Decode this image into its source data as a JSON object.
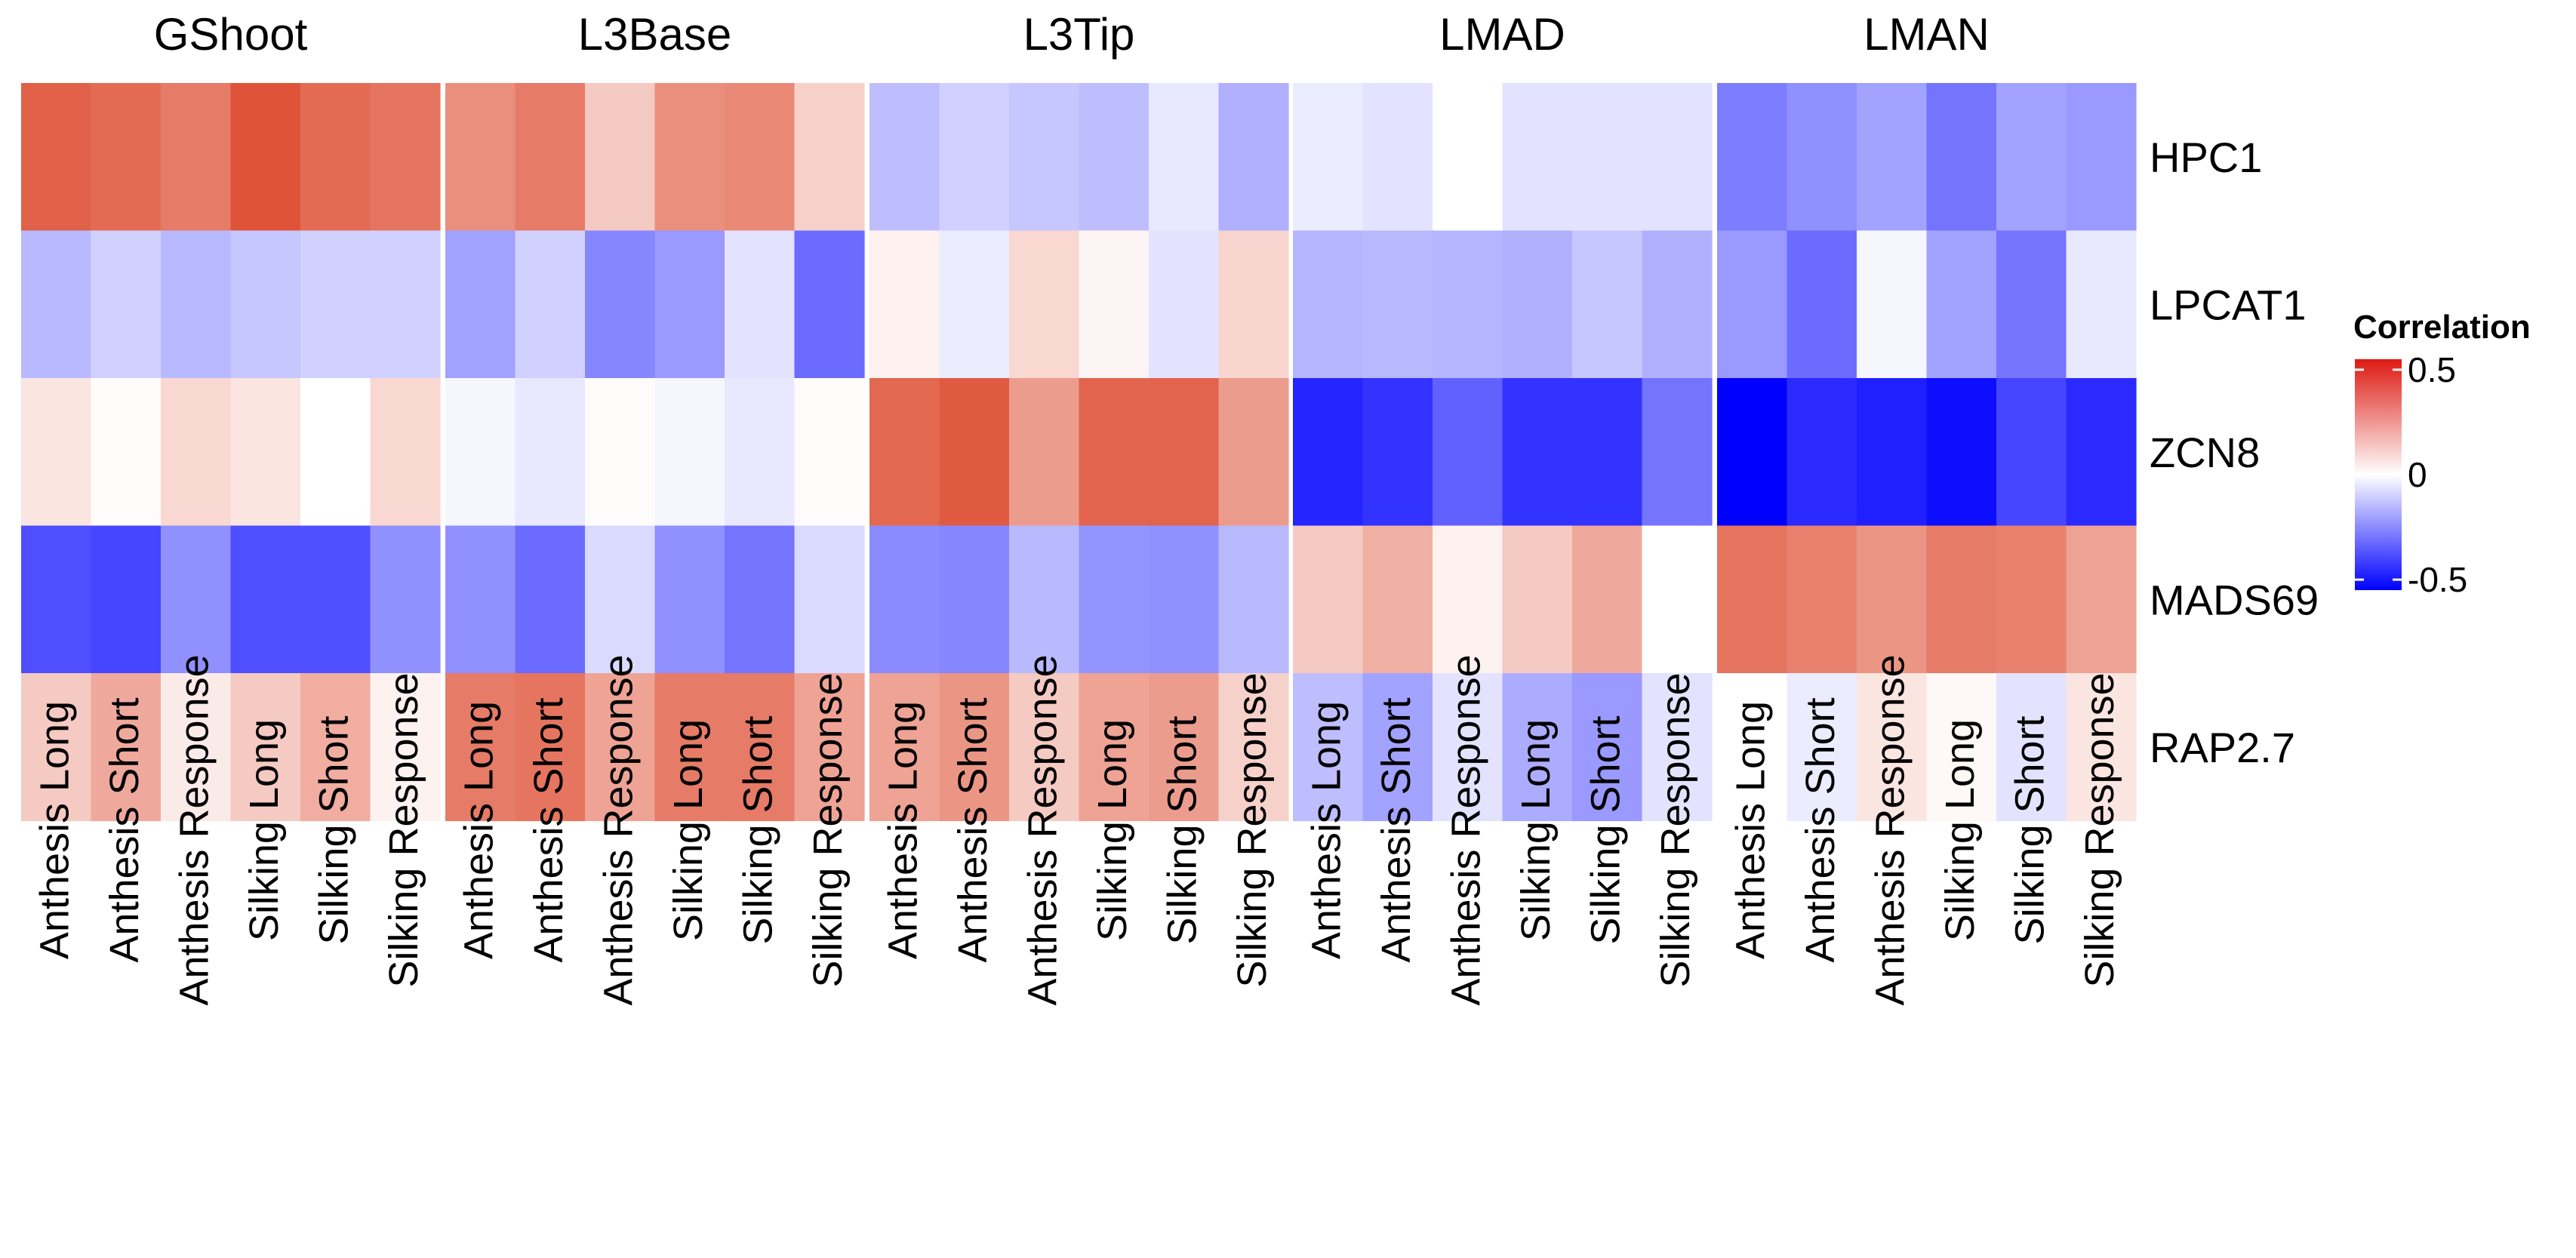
{
  "chart_data": {
    "type": "heatmap",
    "facets": [
      "GShoot",
      "L3Base",
      "L3Tip",
      "LMAD",
      "LMAN"
    ],
    "columns": [
      "Anthesis Long",
      "Anthesis Short",
      "Anthesis Response",
      "Silking Long",
      "Silking Short",
      "Silking Response"
    ],
    "rows": [
      "HPC1",
      "LPCAT1",
      "ZCN8",
      "MADS69",
      "RAP2.7"
    ],
    "values": {
      "GShoot": [
        [
          0.48,
          0.45,
          0.4,
          0.52,
          0.45,
          0.42
        ],
        [
          -0.15,
          -0.1,
          -0.15,
          -0.12,
          -0.1,
          -0.1
        ],
        [
          0.08,
          0.01,
          0.12,
          0.08,
          0.0,
          0.12
        ],
        [
          -0.38,
          -0.4,
          -0.24,
          -0.38,
          -0.38,
          -0.24
        ],
        [
          0.16,
          0.26,
          0.06,
          0.16,
          0.25,
          0.04
        ]
      ],
      "L3Base": [
        [
          0.34,
          0.4,
          0.16,
          0.34,
          0.36,
          0.14
        ],
        [
          -0.2,
          -0.1,
          -0.26,
          -0.22,
          -0.06,
          -0.32
        ],
        [
          -0.02,
          -0.05,
          0.01,
          -0.02,
          -0.05,
          0.01
        ],
        [
          -0.24,
          -0.32,
          -0.08,
          -0.24,
          -0.3,
          -0.08
        ],
        [
          0.4,
          0.42,
          0.28,
          0.4,
          0.4,
          0.28
        ]
      ],
      "L3Tip": [
        [
          -0.14,
          -0.1,
          -0.12,
          -0.14,
          -0.05,
          -0.17
        ],
        [
          0.04,
          -0.04,
          0.12,
          0.03,
          -0.06,
          0.13
        ],
        [
          0.46,
          0.5,
          0.3,
          0.47,
          0.47,
          0.3
        ],
        [
          -0.25,
          -0.26,
          -0.15,
          -0.23,
          -0.24,
          -0.15
        ],
        [
          0.28,
          0.32,
          0.16,
          0.28,
          0.3,
          0.14
        ]
      ],
      "LMAD": [
        [
          -0.04,
          -0.06,
          0.0,
          -0.06,
          -0.06,
          -0.06
        ],
        [
          -0.16,
          -0.15,
          -0.16,
          -0.17,
          -0.12,
          -0.17
        ],
        [
          -0.47,
          -0.44,
          -0.34,
          -0.44,
          -0.44,
          -0.3
        ],
        [
          0.16,
          0.24,
          0.04,
          0.16,
          0.26,
          0.0
        ],
        [
          -0.14,
          -0.2,
          -0.06,
          -0.18,
          -0.22,
          -0.06
        ]
      ],
      "LMAN": [
        [
          -0.28,
          -0.24,
          -0.2,
          -0.3,
          -0.2,
          -0.22
        ],
        [
          -0.22,
          -0.32,
          -0.02,
          -0.2,
          -0.3,
          -0.05
        ],
        [
          -0.55,
          -0.46,
          -0.48,
          -0.52,
          -0.4,
          -0.46
        ],
        [
          0.42,
          0.38,
          0.32,
          0.4,
          0.38,
          0.28
        ],
        [
          0.0,
          -0.04,
          0.08,
          0.02,
          -0.06,
          0.08
        ]
      ]
    },
    "legend": {
      "title": "Correlation",
      "ticks": [
        0.5,
        0,
        -0.5
      ],
      "tick_labels": [
        "0.5",
        "0",
        "-0.5"
      ],
      "range": [
        -0.55,
        0.55
      ],
      "placement": "right"
    },
    "colors": {
      "low": "#0000ff",
      "mid": "#ffffff",
      "high": "#dd4a2e"
    }
  }
}
